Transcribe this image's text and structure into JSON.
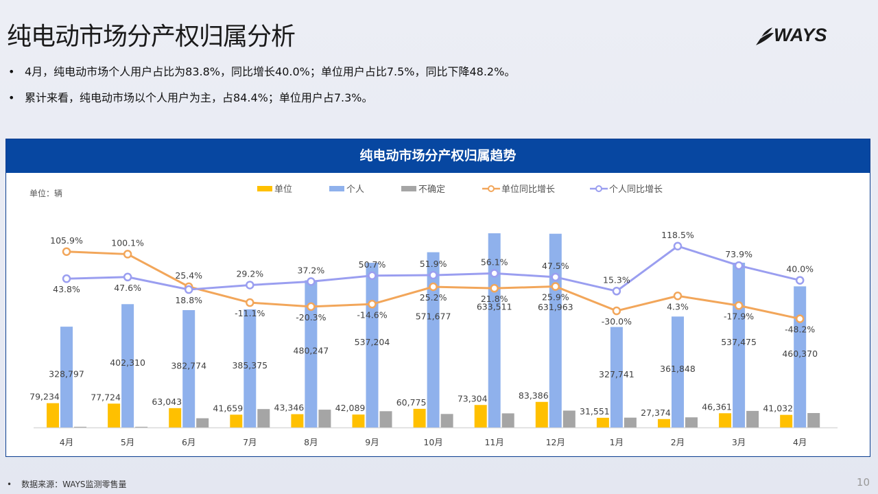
{
  "page": {
    "title": "纯电动市场分产权归属分析",
    "logo_text": "WAYS",
    "bullets": [
      "4月，纯电动市场个人用户占比为83.8%，同比增长40.0%；单位用户占比7.5%，同比下降48.2%。",
      "累计来看，纯电动市场以个人用户为主，占84.4%；单位用户占7.3%。"
    ],
    "footer_bullet": "•",
    "footer_source": "数据来源：WAYS监测零售量",
    "page_number": "10"
  },
  "chart_box": {
    "header": "纯电动市场分产权归属趋势",
    "unit_label": "单位：辆"
  },
  "chart_data": {
    "type": "bar+line",
    "title": "纯电动市场分产权归属趋势",
    "unit": "辆",
    "categories": [
      "4月",
      "5月",
      "6月",
      "7月",
      "8月",
      "9月",
      "10月",
      "11月",
      "12月",
      "1月",
      "2月",
      "3月",
      "4月"
    ],
    "legend_position": "top",
    "series": [
      {
        "name": "单位",
        "type": "bar",
        "color": "#ffc000",
        "values": [
          79234,
          77724,
          63043,
          41659,
          43346,
          42089,
          60775,
          73304,
          83386,
          31551,
          27374,
          46361,
          41032
        ],
        "labels": [
          "79,234",
          "77,724",
          "63,043",
          "41,659",
          "43,346",
          "42,089",
          "60,775",
          "73,304",
          "83,386",
          "31,551",
          "27,374",
          "46,361",
          "41,032"
        ]
      },
      {
        "name": "个人",
        "type": "bar",
        "color": "#8fb1ec",
        "values": [
          328797,
          402310,
          382774,
          385375,
          480247,
          537204,
          571677,
          633511,
          631963,
          327741,
          361848,
          537475,
          460370
        ],
        "labels": [
          "328,797",
          "402,310",
          "382,774",
          "385,375",
          "480,247",
          "537,204",
          "571,677",
          "633,511",
          "631,963",
          "327,741",
          "361,848",
          "537,475",
          "460,370"
        ]
      },
      {
        "name": "不确定",
        "type": "bar",
        "color": "#a5a5a5",
        "values_estimated": [
          0,
          2000,
          30000,
          60000,
          58000,
          53000,
          44000,
          46000,
          55000,
          32000,
          33000,
          54000,
          47000
        ]
      },
      {
        "name": "单位同比增长",
        "type": "line",
        "color": "#f2a65a",
        "unit": "%",
        "values": [
          105.9,
          100.1,
          25.4,
          -11.1,
          -20.3,
          -14.6,
          25.2,
          21.8,
          25.9,
          -30.0,
          4.3,
          -17.9,
          -48.2
        ],
        "labels": [
          "105.9%",
          "100.1%",
          "25.4%",
          "-11.1%",
          "-20.3%",
          "-14.6%",
          "25.2%",
          "21.8%",
          "25.9%",
          "-30.0%",
          "4.3%",
          "-17.9%",
          "-48.2%"
        ]
      },
      {
        "name": "个人同比增长",
        "type": "line",
        "color": "#9a9ef0",
        "unit": "%",
        "values": [
          43.8,
          47.6,
          18.8,
          29.2,
          37.2,
          50.7,
          51.9,
          56.1,
          47.5,
          15.3,
          118.5,
          73.9,
          40.0
        ],
        "labels": [
          "43.8%",
          "47.6%",
          "18.8%",
          "29.2%",
          "37.2%",
          "50.7%",
          "51.9%",
          "56.1%",
          "47.5%",
          "15.3%",
          "118.5%",
          "73.9%",
          "40.0%"
        ]
      }
    ],
    "bar_axis_range": [
      0,
      650000
    ],
    "line_axis_range": [
      -60,
      130
    ],
    "grid": false
  }
}
